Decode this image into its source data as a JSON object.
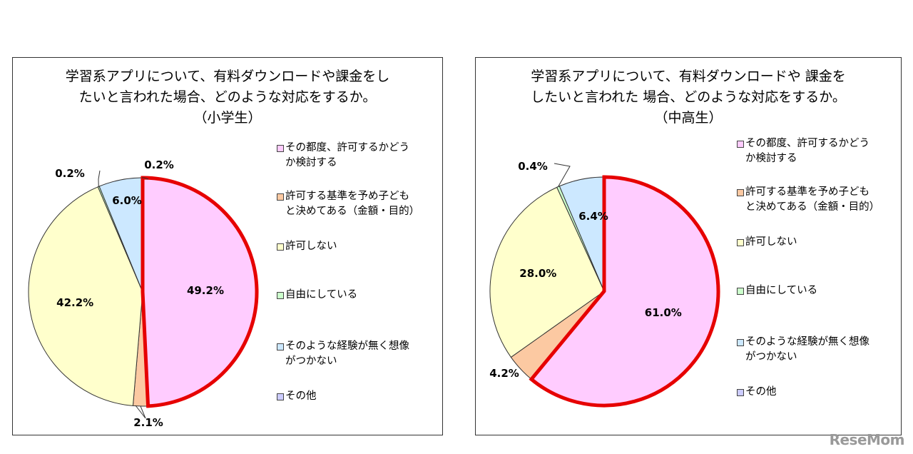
{
  "chart_data": [
    {
      "type": "pie",
      "title": [
        "学習系アプリについて、有料ダウンロードや課金をし",
        "たいと言われた場合、どのような対応をするか。",
        "（小学生）"
      ],
      "categories": [
        "その都度、許可するかどうか検討する",
        "許可する基準を予め子どもと決めてある（金額・目的）",
        "許可しない",
        "自由にしている",
        "そのような経験が無く想像がつかない",
        "その他"
      ],
      "values": [
        49.2,
        2.1,
        42.2,
        0.2,
        6.0,
        0.2
      ],
      "labels": [
        "49.2%",
        "2.1%",
        "42.2%",
        "0.2%",
        "6.0%",
        "0.2%"
      ],
      "highlight": "その都度、許可するかどうか検討する",
      "legend": "right"
    },
    {
      "type": "pie",
      "title": [
        "学習系アプリについて、有料ダウンロードや 課金を",
        "したいと言われた 場合、どのような対応をするか。",
        "（中高生）"
      ],
      "categories": [
        "その都度、許可するかどうか検討する",
        "許可する基準を予め子どもと決めてある（金額・目的）",
        "許可しない",
        "自由にしている",
        "そのような経験が無く想像がつかない",
        "その他"
      ],
      "values": [
        61.0,
        4.2,
        28.0,
        0.4,
        6.4,
        0.0
      ],
      "labels": [
        "61.0%",
        "4.2%",
        "28.0%",
        "0.4%",
        "6.4%",
        ""
      ],
      "highlight": "その都度、許可するかどうか検討する",
      "legend": "right"
    }
  ],
  "legend_display": [
    [
      [
        "その都度、許可するかどう",
        "か検討する"
      ],
      [
        "許可する基準を予め子ども",
        "と決めてある（金額・目的）"
      ],
      [
        "許可しない"
      ],
      [
        "自由にしている"
      ],
      [
        "そのような経験が無く想像",
        "がつかない"
      ],
      [
        "その他"
      ]
    ],
    [
      [
        "その都度、許可するかどう",
        "か検討する"
      ],
      [
        "許可する基準を予め子ども",
        "と決めてある（金額・目的）"
      ],
      [
        "許可しない"
      ],
      [
        "自由にしている"
      ],
      [
        "そのような経験が無く想像",
        "がつかない"
      ],
      [
        "その他"
      ]
    ]
  ],
  "colors": [
    "#ffccff",
    "#fcc9a2",
    "#ffffcc",
    "#ccffcc",
    "#cce8ff",
    "#ccccff"
  ],
  "highlight_color": "#e60000",
  "logo": "ReseMom"
}
